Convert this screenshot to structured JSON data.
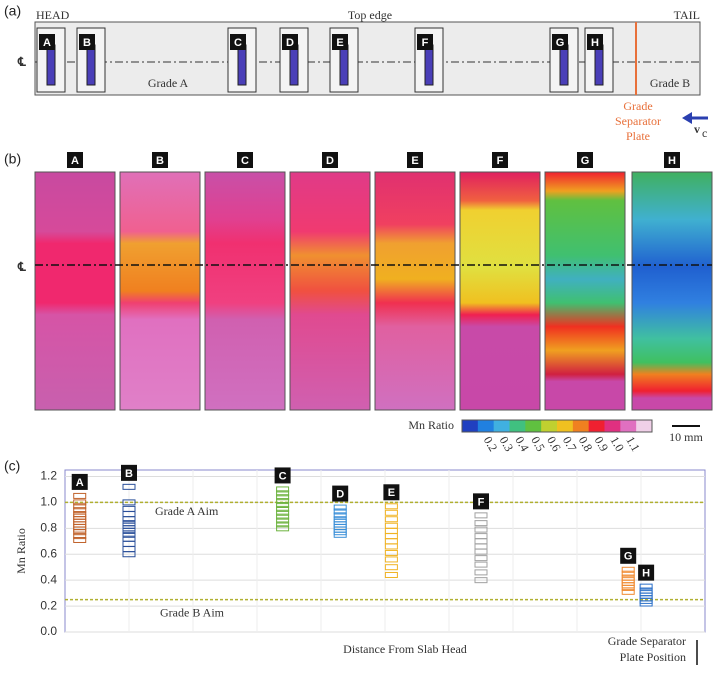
{
  "panels": {
    "a": "(a)",
    "b": "(b)",
    "c": "(c)"
  },
  "diagram": {
    "head": "HEAD",
    "top_edge": "Top edge",
    "tail": "TAIL",
    "centerline": "℄",
    "grade_a": "Grade A",
    "grade_b": "Grade B",
    "separator": [
      "Grade",
      "Separator",
      "Plate"
    ],
    "velocity": "v",
    "velocity_sub": "c",
    "samples": [
      "A",
      "B",
      "C",
      "D",
      "E",
      "F",
      "G",
      "H"
    ]
  },
  "maps": {
    "centerline": "℄",
    "strips": [
      "A",
      "B",
      "C",
      "D",
      "E",
      "F",
      "G",
      "H"
    ],
    "colorbar_label": "Mn Ratio",
    "colorbar_ticks": [
      "0.2",
      "0.3",
      "0.4",
      "0.5",
      "0.6",
      "0.7",
      "0.8",
      "0.9",
      "1.0",
      "1.1"
    ],
    "scale_bar": "10 mm"
  },
  "chart_data": {
    "type": "scatter",
    "ylabel": "Mn Ratio",
    "xlabel": "Distance From Slab Head",
    "xlim": [
      0,
      100
    ],
    "ylim": [
      0,
      1.25
    ],
    "yticks": [
      {
        "value": 0,
        "label": "0.0"
      },
      {
        "value": 0.2,
        "label": "0.2"
      },
      {
        "value": 0.4,
        "label": "0.4"
      },
      {
        "value": 0.6,
        "label": "0.6"
      },
      {
        "value": 0.8,
        "label": "0.8"
      },
      {
        "value": 1.0,
        "label": "1.0"
      },
      {
        "value": 1.2,
        "label": "1.2"
      }
    ],
    "grid": true,
    "reference_lines": [
      {
        "label": "Grade A Aim",
        "value": 1.0
      },
      {
        "label": "Grade B Aim",
        "value": 0.25
      }
    ],
    "plate_annotation": [
      "Grade Separator",
      "Plate Position"
    ],
    "plate_x": 97.5,
    "series": [
      {
        "name": "A",
        "color": "#c0622a",
        "x": 2.3,
        "values": [
          1.05,
          1.0,
          0.97,
          0.94,
          0.91,
          0.89,
          0.87,
          0.85,
          0.83,
          0.81,
          0.79,
          0.77,
          0.74,
          0.71
        ]
      },
      {
        "name": "B",
        "color": "#2a4f9a",
        "x": 10,
        "values": [
          1.12,
          1.0,
          0.95,
          0.91,
          0.87,
          0.84,
          0.82,
          0.8,
          0.78,
          0.75,
          0.72,
          0.68,
          0.64,
          0.6
        ]
      },
      {
        "name": "C",
        "color": "#6db33f",
        "x": 34,
        "values": [
          1.1,
          1.07,
          1.04,
          1.01,
          0.98,
          0.95,
          0.92,
          0.89,
          0.86,
          0.83,
          0.8
        ]
      },
      {
        "name": "D",
        "color": "#3a8fd8",
        "x": 43,
        "values": [
          0.96,
          0.93,
          0.9,
          0.87,
          0.85,
          0.83,
          0.81,
          0.79,
          0.77,
          0.75
        ]
      },
      {
        "name": "E",
        "color": "#f0b323",
        "x": 51,
        "values": [
          0.97,
          0.92,
          0.87,
          0.82,
          0.78,
          0.74,
          0.7,
          0.66,
          0.61,
          0.56,
          0.5,
          0.44
        ]
      },
      {
        "name": "F",
        "color": "#a0a0a0",
        "x": 65,
        "values": [
          0.9,
          0.84,
          0.79,
          0.74,
          0.7,
          0.66,
          0.62,
          0.57,
          0.52,
          0.46,
          0.4
        ]
      },
      {
        "name": "G",
        "color": "#f08a30",
        "x": 88,
        "values": [
          0.48,
          0.45,
          0.42,
          0.4,
          0.38,
          0.36,
          0.34,
          0.31
        ]
      },
      {
        "name": "H",
        "color": "#2a6fc9",
        "x": 90.8,
        "values": [
          0.35,
          0.32,
          0.3,
          0.28,
          0.26,
          0.24,
          0.22
        ]
      }
    ]
  }
}
